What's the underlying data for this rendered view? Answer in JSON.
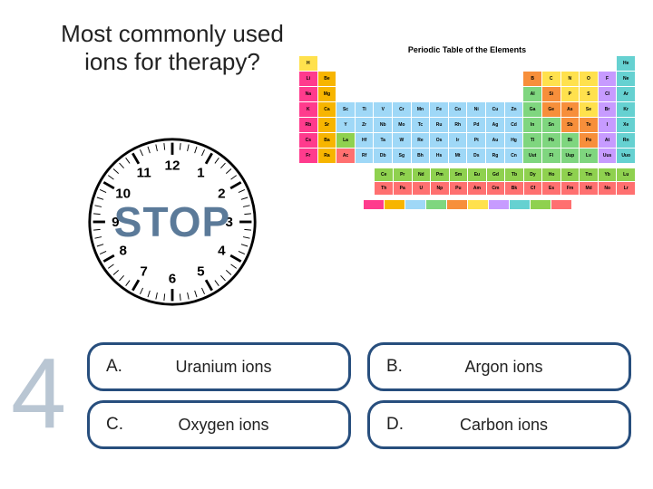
{
  "question": "Most commonly used ions for therapy?",
  "stop_label": "STOP",
  "question_number": "4",
  "clock": {
    "numbers": [
      "12",
      "1",
      "2",
      "3",
      "4",
      "5",
      "6",
      "7",
      "8",
      "9",
      "10",
      "11"
    ],
    "tick_color": "#000",
    "number_color": "#000",
    "border_color": "#000",
    "face_color": "#fff"
  },
  "stop_color": "#5b7a99",
  "answers": [
    {
      "letter": "A.",
      "text": "Uranium ions"
    },
    {
      "letter": "B.",
      "text": "Argon ions"
    },
    {
      "letter": "C.",
      "text": "Oxygen ions"
    },
    {
      "letter": "D.",
      "text": "Carbon ions"
    }
  ],
  "answer_border_color": "#274e7d",
  "periodic_table": {
    "title": "Periodic Table of the Elements",
    "group_colors": {
      "alk": "#ff3b8d",
      "aem": "#f7b500",
      "tm": "#9fd8f7",
      "ptm": "#7fd67f",
      "met": "#f78f3b",
      "nm": "#ffe14d",
      "hal": "#c79bff",
      "ng": "#66d1d1",
      "lan": "#8fd14f",
      "act": "#ff7070"
    },
    "legend_order": [
      "alk",
      "aem",
      "tm",
      "ptm",
      "met",
      "nm",
      "hal",
      "ng",
      "lan",
      "act"
    ],
    "rows": [
      [
        [
          "H",
          "nm"
        ],
        null,
        null,
        null,
        null,
        null,
        null,
        null,
        null,
        null,
        null,
        null,
        null,
        null,
        null,
        null,
        null,
        [
          "He",
          "ng"
        ]
      ],
      [
        [
          "Li",
          "alk"
        ],
        [
          "Be",
          "aem"
        ],
        null,
        null,
        null,
        null,
        null,
        null,
        null,
        null,
        null,
        null,
        [
          "B",
          "met"
        ],
        [
          "C",
          "nm"
        ],
        [
          "N",
          "nm"
        ],
        [
          "O",
          "nm"
        ],
        [
          "F",
          "hal"
        ],
        [
          "Ne",
          "ng"
        ]
      ],
      [
        [
          "Na",
          "alk"
        ],
        [
          "Mg",
          "aem"
        ],
        null,
        null,
        null,
        null,
        null,
        null,
        null,
        null,
        null,
        null,
        [
          "Al",
          "ptm"
        ],
        [
          "Si",
          "met"
        ],
        [
          "P",
          "nm"
        ],
        [
          "S",
          "nm"
        ],
        [
          "Cl",
          "hal"
        ],
        [
          "Ar",
          "ng"
        ]
      ],
      [
        [
          "K",
          "alk"
        ],
        [
          "Ca",
          "aem"
        ],
        [
          "Sc",
          "tm"
        ],
        [
          "Ti",
          "tm"
        ],
        [
          "V",
          "tm"
        ],
        [
          "Cr",
          "tm"
        ],
        [
          "Mn",
          "tm"
        ],
        [
          "Fe",
          "tm"
        ],
        [
          "Co",
          "tm"
        ],
        [
          "Ni",
          "tm"
        ],
        [
          "Cu",
          "tm"
        ],
        [
          "Zn",
          "tm"
        ],
        [
          "Ga",
          "ptm"
        ],
        [
          "Ge",
          "met"
        ],
        [
          "As",
          "met"
        ],
        [
          "Se",
          "nm"
        ],
        [
          "Br",
          "hal"
        ],
        [
          "Kr",
          "ng"
        ]
      ],
      [
        [
          "Rb",
          "alk"
        ],
        [
          "Sr",
          "aem"
        ],
        [
          "Y",
          "tm"
        ],
        [
          "Zr",
          "tm"
        ],
        [
          "Nb",
          "tm"
        ],
        [
          "Mo",
          "tm"
        ],
        [
          "Tc",
          "tm"
        ],
        [
          "Ru",
          "tm"
        ],
        [
          "Rh",
          "tm"
        ],
        [
          "Pd",
          "tm"
        ],
        [
          "Ag",
          "tm"
        ],
        [
          "Cd",
          "tm"
        ],
        [
          "In",
          "ptm"
        ],
        [
          "Sn",
          "ptm"
        ],
        [
          "Sb",
          "met"
        ],
        [
          "Te",
          "met"
        ],
        [
          "I",
          "hal"
        ],
        [
          "Xe",
          "ng"
        ]
      ],
      [
        [
          "Cs",
          "alk"
        ],
        [
          "Ba",
          "aem"
        ],
        [
          "La",
          "lan"
        ],
        [
          "Hf",
          "tm"
        ],
        [
          "Ta",
          "tm"
        ],
        [
          "W",
          "tm"
        ],
        [
          "Re",
          "tm"
        ],
        [
          "Os",
          "tm"
        ],
        [
          "Ir",
          "tm"
        ],
        [
          "Pt",
          "tm"
        ],
        [
          "Au",
          "tm"
        ],
        [
          "Hg",
          "tm"
        ],
        [
          "Tl",
          "ptm"
        ],
        [
          "Pb",
          "ptm"
        ],
        [
          "Bi",
          "ptm"
        ],
        [
          "Po",
          "met"
        ],
        [
          "At",
          "hal"
        ],
        [
          "Rn",
          "ng"
        ]
      ],
      [
        [
          "Fr",
          "alk"
        ],
        [
          "Ra",
          "aem"
        ],
        [
          "Ac",
          "act"
        ],
        [
          "Rf",
          "tm"
        ],
        [
          "Db",
          "tm"
        ],
        [
          "Sg",
          "tm"
        ],
        [
          "Bh",
          "tm"
        ],
        [
          "Hs",
          "tm"
        ],
        [
          "Mt",
          "tm"
        ],
        [
          "Ds",
          "tm"
        ],
        [
          "Rg",
          "tm"
        ],
        [
          "Cn",
          "tm"
        ],
        [
          "Uut",
          "ptm"
        ],
        [
          "Fl",
          "ptm"
        ],
        [
          "Uup",
          "ptm"
        ],
        [
          "Lv",
          "ptm"
        ],
        [
          "Uus",
          "hal"
        ],
        [
          "Uuo",
          "ng"
        ]
      ]
    ],
    "rare": [
      [
        [
          "Ce",
          "lan"
        ],
        [
          "Pr",
          "lan"
        ],
        [
          "Nd",
          "lan"
        ],
        [
          "Pm",
          "lan"
        ],
        [
          "Sm",
          "lan"
        ],
        [
          "Eu",
          "lan"
        ],
        [
          "Gd",
          "lan"
        ],
        [
          "Tb",
          "lan"
        ],
        [
          "Dy",
          "lan"
        ],
        [
          "Ho",
          "lan"
        ],
        [
          "Er",
          "lan"
        ],
        [
          "Tm",
          "lan"
        ],
        [
          "Yb",
          "lan"
        ],
        [
          "Lu",
          "lan"
        ]
      ],
      [
        [
          "Th",
          "act"
        ],
        [
          "Pa",
          "act"
        ],
        [
          "U",
          "act"
        ],
        [
          "Np",
          "act"
        ],
        [
          "Pu",
          "act"
        ],
        [
          "Am",
          "act"
        ],
        [
          "Cm",
          "act"
        ],
        [
          "Bk",
          "act"
        ],
        [
          "Cf",
          "act"
        ],
        [
          "Es",
          "act"
        ],
        [
          "Fm",
          "act"
        ],
        [
          "Md",
          "act"
        ],
        [
          "No",
          "act"
        ],
        [
          "Lr",
          "act"
        ]
      ]
    ]
  }
}
